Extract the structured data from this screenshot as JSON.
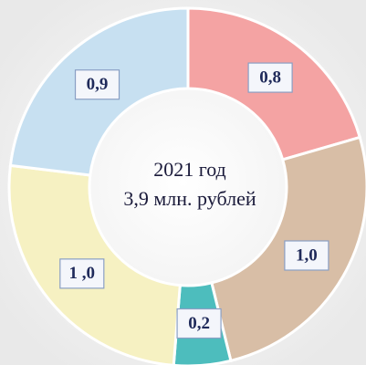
{
  "chart_data": {
    "type": "donut",
    "center_text": [
      "2021 год",
      "3,9 млн. рублей"
    ],
    "categories": [
      null,
      null,
      null,
      null,
      null
    ],
    "values": [
      0.8,
      1.0,
      0.2,
      1.0,
      0.9
    ],
    "value_labels": [
      "0,8",
      "1,0",
      "0,2",
      "1 ,0",
      "0,9"
    ],
    "colors": [
      "#f4a3a3",
      "#d8bea6",
      "#4dbdbd",
      "#f6f1c2",
      "#c7e0f1"
    ]
  }
}
